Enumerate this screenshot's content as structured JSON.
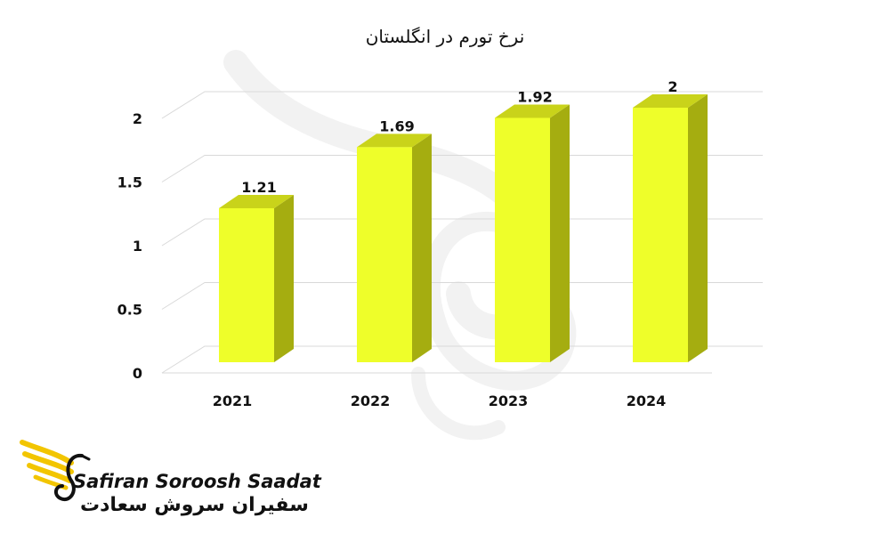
{
  "chart_data": {
    "type": "bar",
    "title": "نرخ تورم در انگلستان",
    "categories": [
      "2021",
      "2022",
      "2023",
      "2024"
    ],
    "values": [
      1.21,
      1.69,
      1.92,
      2
    ],
    "value_labels": [
      "1.21",
      "1.69",
      "1.92",
      "2"
    ],
    "y_ticks": [
      "0",
      "0.5",
      "1",
      "1.5",
      "2"
    ],
    "ylim": [
      0,
      2
    ],
    "xlabel": "",
    "ylabel": "",
    "grid": true,
    "style": "3d-column",
    "colors": {
      "bar_front": "#eefe2a",
      "bar_side": "#a5ad10",
      "bar_top": "#c9d31a",
      "grid": "#d9d9d9"
    }
  },
  "logo": {
    "name_en": "Safiran Soroosh Saadat",
    "name_fa": "سفیران سروش سعادت",
    "accent": "#f2c500"
  }
}
